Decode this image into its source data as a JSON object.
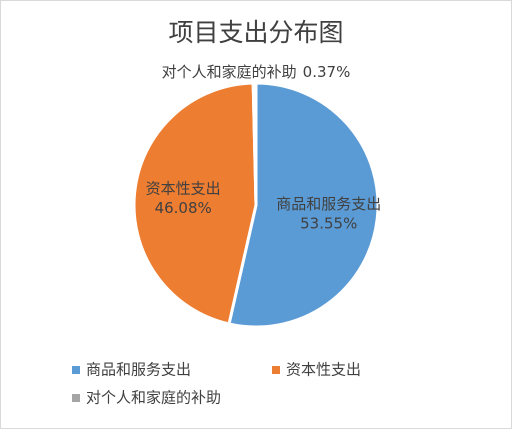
{
  "chart_data": {
    "type": "pie",
    "title": "项目支出分布图",
    "categories": [
      "商品和服务支出",
      "资本性支出",
      "对个人和家庭的补助"
    ],
    "values": [
      53.55,
      46.08,
      0.37
    ],
    "value_labels": [
      "53.55%",
      "46.08%",
      "0.37%"
    ],
    "colors": [
      "#5b9bd5",
      "#ed7d31",
      "#a5a5a5"
    ],
    "legend": "bottom"
  }
}
